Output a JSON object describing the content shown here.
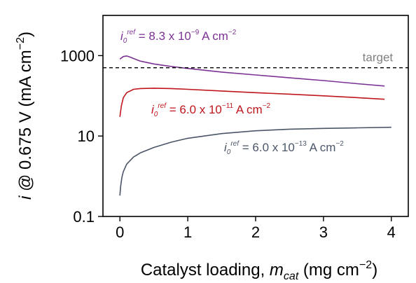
{
  "chart_data": {
    "type": "line",
    "y_scale": "log",
    "xlim": [
      -0.25,
      4.25
    ],
    "ylim": [
      0.1,
      10000
    ],
    "x_ticks": [
      0,
      1,
      2,
      3,
      4
    ],
    "x_tick_labels": [
      "0",
      "1",
      "2",
      "3",
      "4"
    ],
    "y_ticks": [
      0.1,
      10,
      1000
    ],
    "y_tick_labels": [
      "0.1",
      "10",
      "1000"
    ],
    "ylabel": {
      "prefix_italic": "i",
      "text": " @ 0.675 V (mA cm",
      "sup": "−2",
      "suffix": ")"
    },
    "xlabel": {
      "text": "Catalyst loading, ",
      "italic": "m",
      "sub": "cat",
      "text2": " (mg cm",
      "sup": "−2",
      "suffix": ")"
    },
    "target": {
      "label": "target",
      "y": 500,
      "color": "#808080"
    },
    "series": [
      {
        "name": "i0ref = 8.3 x 10^-9 A cm^-2",
        "label_parts": {
          "i": "i",
          "sub": "0",
          "sup": "ref",
          "value": " = 8.3 x 10",
          "exp": "−9",
          "unit": " A cm",
          "unit_exp": "−2"
        },
        "color": "#7b3294",
        "x": [
          0.0,
          0.05,
          0.1,
          0.15,
          0.2,
          0.3,
          0.5,
          0.75,
          1.0,
          1.5,
          2.0,
          2.5,
          3.0,
          3.5,
          3.9
        ],
        "y": [
          820,
          950,
          980,
          920,
          850,
          730,
          620,
          540,
          480,
          390,
          330,
          280,
          240,
          200,
          175
        ]
      },
      {
        "name": "i0ref = 6.0 x 10^-11 A cm^-2",
        "label_parts": {
          "i": "i",
          "sub": "0",
          "sup": "ref",
          "value": " = 6.0 x 10",
          "exp": "−11",
          "unit": " A cm",
          "unit_exp": "−2"
        },
        "color": "#c0161d",
        "x": [
          0.0,
          0.02,
          0.05,
          0.1,
          0.2,
          0.3,
          0.5,
          0.75,
          1.0,
          1.5,
          2.0,
          2.5,
          3.0,
          3.5,
          3.9
        ],
        "y": [
          30,
          55,
          90,
          120,
          145,
          152,
          155,
          152,
          145,
          132,
          120,
          110,
          100,
          90,
          82
        ]
      },
      {
        "name": "i0ref = 6.0 x 10^-13 A cm^-2",
        "label_parts": {
          "i": "i",
          "sub": "0",
          "sup": "ref",
          "value": " = 6.0 x 10",
          "exp": "−13",
          "unit": " A cm",
          "unit_exp": "−2"
        },
        "color": "#4a5668",
        "x": [
          0.0,
          0.01,
          0.03,
          0.05,
          0.1,
          0.2,
          0.3,
          0.5,
          0.75,
          1.0,
          1.5,
          2.0,
          2.5,
          3.0,
          3.5,
          4.0
        ],
        "y": [
          0.33,
          0.55,
          0.95,
          1.3,
          2.0,
          3.0,
          3.8,
          5.2,
          7.0,
          8.8,
          11.5,
          13.5,
          14.8,
          15.5,
          16.0,
          16.5
        ]
      }
    ],
    "grid": false
  }
}
